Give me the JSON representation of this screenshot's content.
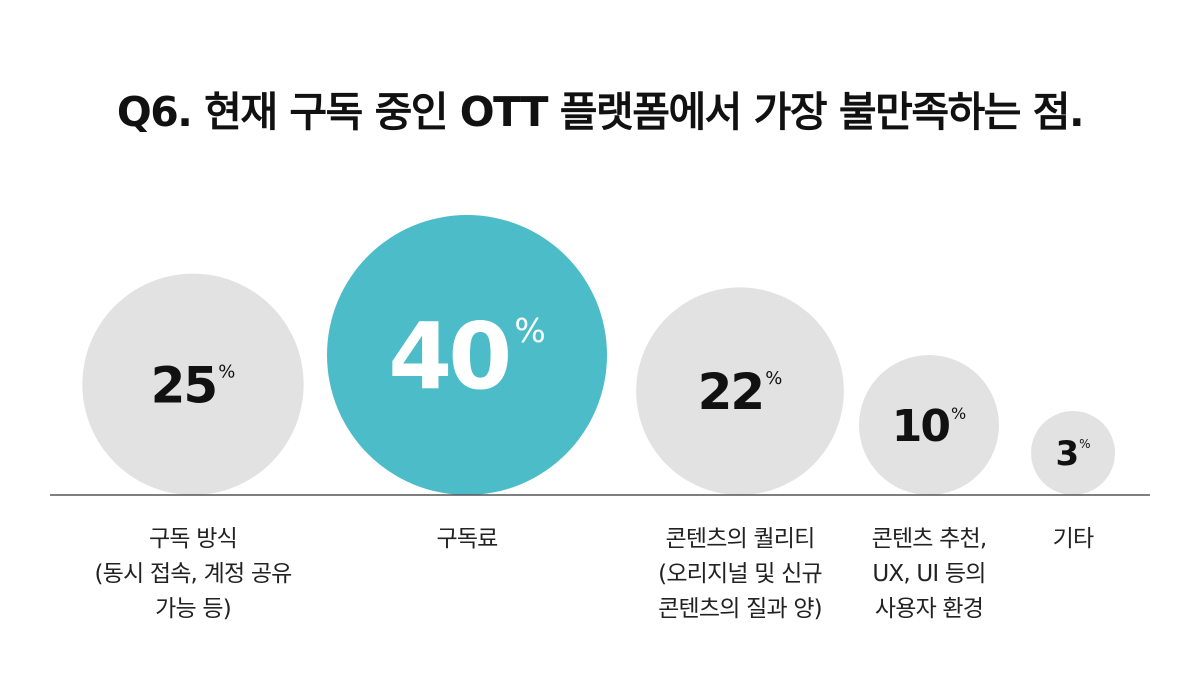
{
  "chart_data": {
    "type": "bubble",
    "title": "Q6. 현재 구독 중인 OTT 플랫폼에서 가장 불만족하는 점.",
    "categories": [
      [
        "구독 방식",
        "(동시 접속, 계정 공유",
        "가능 등)"
      ],
      [
        "구독료"
      ],
      [
        "콘텐츠의 퀄리티",
        "(오리지널 및 신규",
        "콘텐츠의 질과 양)"
      ],
      [
        "콘텐츠 추천,",
        "UX, UI 등의",
        "사용자 환경"
      ],
      [
        "기타"
      ]
    ],
    "values": [
      25,
      40,
      22,
      10,
      3
    ],
    "unit": "%",
    "highlight_index": 1,
    "colors": {
      "highlight": "#4bbcc8",
      "default": "#e2e2e2",
      "highlight_text": "#ffffff",
      "default_text": "#111111",
      "baseline": "#555555"
    }
  }
}
